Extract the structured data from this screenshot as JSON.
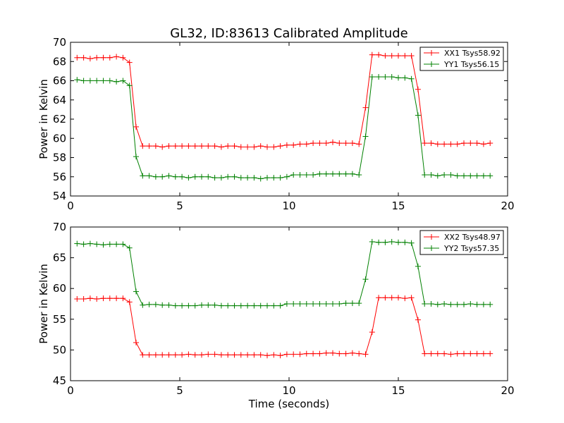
{
  "figure": {
    "title": "GL32, ID:83613 Calibrated Amplitude",
    "xlabel": "Time (seconds)"
  },
  "chart_data": [
    {
      "type": "line",
      "ylabel": "Power in Kelvin",
      "xlim": [
        0,
        20
      ],
      "ylim": [
        54,
        70
      ],
      "xticks": [
        "0",
        "5",
        "10",
        "15",
        "20"
      ],
      "yticks": [
        "54",
        "56",
        "58",
        "60",
        "62",
        "64",
        "66",
        "68",
        "70"
      ],
      "grid": false,
      "legend_position": "top-right",
      "x": [
        0.3,
        0.6,
        0.9,
        1.2,
        1.5,
        1.8,
        2.1,
        2.4,
        2.7,
        3.0,
        3.3,
        3.6,
        3.9,
        4.2,
        4.5,
        4.8,
        5.1,
        5.4,
        5.7,
        6.0,
        6.3,
        6.6,
        6.9,
        7.2,
        7.5,
        7.8,
        8.1,
        8.4,
        8.7,
        9.0,
        9.3,
        9.6,
        9.9,
        10.2,
        10.5,
        10.8,
        11.1,
        11.4,
        11.7,
        12.0,
        12.3,
        12.6,
        12.9,
        13.2,
        13.5,
        13.8,
        14.1,
        14.4,
        14.7,
        15.0,
        15.3,
        15.6,
        15.9,
        16.2,
        16.5,
        16.8,
        17.1,
        17.4,
        17.7,
        18.0,
        18.3,
        18.6,
        18.9,
        19.2
      ],
      "series": [
        {
          "name": "XX1 Tsys58.92",
          "color": "#ff0000",
          "values": [
            68.4,
            68.4,
            68.3,
            68.4,
            68.4,
            68.4,
            68.5,
            68.4,
            67.9,
            61.2,
            59.2,
            59.2,
            59.2,
            59.1,
            59.2,
            59.2,
            59.2,
            59.2,
            59.2,
            59.2,
            59.2,
            59.2,
            59.1,
            59.2,
            59.2,
            59.1,
            59.1,
            59.1,
            59.2,
            59.1,
            59.1,
            59.2,
            59.3,
            59.3,
            59.4,
            59.4,
            59.5,
            59.5,
            59.5,
            59.6,
            59.5,
            59.5,
            59.5,
            59.4,
            63.2,
            68.7,
            68.7,
            68.6,
            68.6,
            68.6,
            68.6,
            68.6,
            65.1,
            59.5,
            59.5,
            59.4,
            59.4,
            59.4,
            59.4,
            59.5,
            59.5,
            59.5,
            59.4,
            59.5
          ]
        },
        {
          "name": "YY1 Tsys56.15",
          "color": "#008000",
          "values": [
            66.1,
            66.0,
            66.0,
            66.0,
            66.0,
            66.0,
            65.9,
            66.0,
            65.5,
            58.1,
            56.1,
            56.1,
            56.0,
            56.0,
            56.1,
            56.0,
            56.0,
            55.9,
            56.0,
            56.0,
            56.0,
            55.9,
            55.9,
            56.0,
            56.0,
            55.9,
            55.9,
            55.9,
            55.8,
            55.9,
            55.9,
            55.9,
            56.0,
            56.2,
            56.2,
            56.2,
            56.2,
            56.3,
            56.3,
            56.3,
            56.3,
            56.3,
            56.3,
            56.2,
            60.2,
            66.4,
            66.4,
            66.4,
            66.4,
            66.3,
            66.3,
            66.2,
            62.4,
            56.2,
            56.2,
            56.1,
            56.2,
            56.2,
            56.1,
            56.1,
            56.1,
            56.1,
            56.1,
            56.1
          ]
        }
      ]
    },
    {
      "type": "line",
      "ylabel": "Power in Kelvin",
      "xlim": [
        0,
        20
      ],
      "ylim": [
        45,
        70
      ],
      "xticks": [
        "0",
        "5",
        "10",
        "15",
        "20"
      ],
      "yticks": [
        "45",
        "50",
        "55",
        "60",
        "65",
        "70"
      ],
      "grid": false,
      "legend_position": "top-right",
      "x": [
        0.3,
        0.6,
        0.9,
        1.2,
        1.5,
        1.8,
        2.1,
        2.4,
        2.7,
        3.0,
        3.3,
        3.6,
        3.9,
        4.2,
        4.5,
        4.8,
        5.1,
        5.4,
        5.7,
        6.0,
        6.3,
        6.6,
        6.9,
        7.2,
        7.5,
        7.8,
        8.1,
        8.4,
        8.7,
        9.0,
        9.3,
        9.6,
        9.9,
        10.2,
        10.5,
        10.8,
        11.1,
        11.4,
        11.7,
        12.0,
        12.3,
        12.6,
        12.9,
        13.2,
        13.5,
        13.8,
        14.1,
        14.4,
        14.7,
        15.0,
        15.3,
        15.6,
        15.9,
        16.2,
        16.5,
        16.8,
        17.1,
        17.4,
        17.7,
        18.0,
        18.3,
        18.6,
        18.9,
        19.2
      ],
      "series": [
        {
          "name": "XX2 Tsys48.97",
          "color": "#ff0000",
          "values": [
            58.3,
            58.3,
            58.4,
            58.3,
            58.4,
            58.4,
            58.4,
            58.4,
            57.8,
            51.2,
            49.2,
            49.2,
            49.2,
            49.2,
            49.2,
            49.2,
            49.2,
            49.3,
            49.2,
            49.2,
            49.3,
            49.3,
            49.2,
            49.2,
            49.2,
            49.2,
            49.2,
            49.2,
            49.2,
            49.1,
            49.2,
            49.1,
            49.3,
            49.3,
            49.3,
            49.4,
            49.4,
            49.4,
            49.5,
            49.5,
            49.4,
            49.4,
            49.5,
            49.4,
            49.3,
            52.9,
            58.5,
            58.5,
            58.5,
            58.5,
            58.4,
            58.5,
            54.9,
            49.4,
            49.4,
            49.4,
            49.4,
            49.3,
            49.4,
            49.4,
            49.4,
            49.4,
            49.4,
            49.4
          ]
        },
        {
          "name": "YY2 Tsys57.35",
          "color": "#008000",
          "values": [
            67.3,
            67.2,
            67.3,
            67.2,
            67.1,
            67.2,
            67.2,
            67.2,
            66.6,
            59.5,
            57.3,
            57.4,
            57.4,
            57.3,
            57.3,
            57.2,
            57.2,
            57.2,
            57.2,
            57.3,
            57.3,
            57.3,
            57.2,
            57.2,
            57.2,
            57.2,
            57.2,
            57.2,
            57.2,
            57.2,
            57.2,
            57.2,
            57.5,
            57.5,
            57.5,
            57.5,
            57.5,
            57.5,
            57.5,
            57.5,
            57.5,
            57.6,
            57.6,
            57.6,
            61.5,
            67.6,
            67.5,
            67.5,
            67.6,
            67.5,
            67.5,
            67.4,
            63.6,
            57.5,
            57.5,
            57.4,
            57.5,
            57.4,
            57.4,
            57.4,
            57.5,
            57.4,
            57.4,
            57.4
          ]
        }
      ]
    }
  ]
}
